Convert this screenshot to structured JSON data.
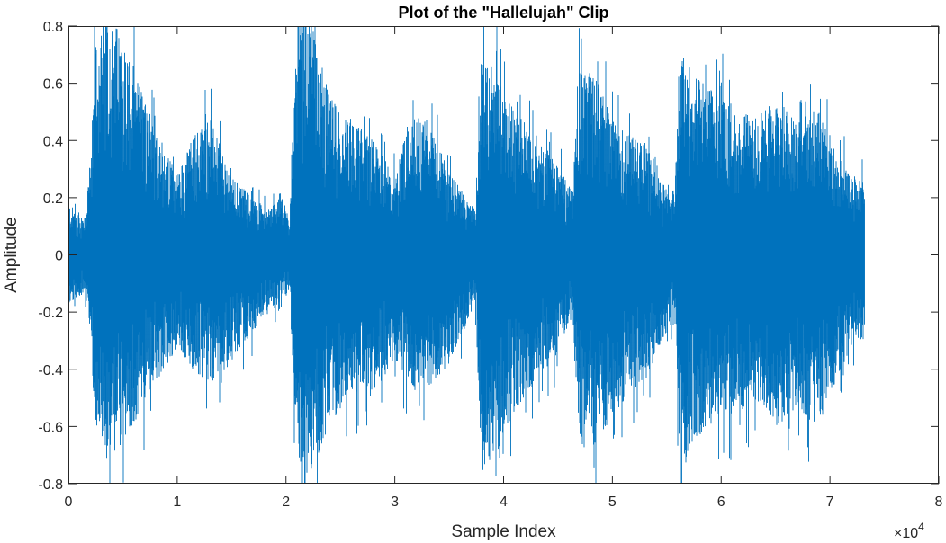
{
  "chart_data": {
    "type": "line",
    "title": "Plot of the \"Hallelujah\" Clip",
    "xlabel": "Sample Index",
    "ylabel": "Amplitude",
    "xlim": [
      0,
      80000
    ],
    "ylim": [
      -0.8,
      0.8
    ],
    "x_tick_values": [
      0,
      10000,
      20000,
      30000,
      40000,
      50000,
      60000,
      70000,
      80000
    ],
    "x_tick_labels": [
      "0",
      "1",
      "2",
      "3",
      "4",
      "5",
      "6",
      "7",
      "8"
    ],
    "x_multiplier": "×10",
    "x_multiplier_exponent": "4",
    "y_tick_values": [
      -0.8,
      -0.6,
      -0.4,
      -0.2,
      0,
      0.2,
      0.4,
      0.6,
      0.8
    ],
    "y_tick_labels": [
      "-0.8",
      "-0.6",
      "-0.4",
      "-0.2",
      "0",
      "0.2",
      "0.4",
      "0.6",
      "0.8"
    ],
    "grid": false,
    "series": [
      {
        "color": "#0072bd",
        "x_range": [
          0,
          73200
        ],
        "envelope": {
          "x": [
            0,
            1500,
            2000,
            2500,
            3500,
            4500,
            6000,
            8000,
            10000,
            11500,
            13000,
            15000,
            17000,
            18500,
            19500,
            20300,
            21000,
            21500,
            22500,
            24000,
            26000,
            28000,
            30000,
            31500,
            33000,
            35000,
            36500,
            37400,
            38000,
            39500,
            41000,
            43000,
            44500,
            46300,
            47000,
            48500,
            50000,
            51500,
            53000,
            54500,
            55700,
            56300,
            57000,
            58500,
            60000,
            61500,
            63000,
            65000,
            67000,
            69000,
            70500,
            72000,
            73200
          ],
          "upper": [
            0.18,
            0.13,
            0.3,
            0.75,
            0.82,
            0.8,
            0.66,
            0.45,
            0.28,
            0.42,
            0.48,
            0.27,
            0.2,
            0.16,
            0.22,
            0.13,
            0.75,
            0.85,
            0.8,
            0.55,
            0.48,
            0.4,
            0.28,
            0.5,
            0.47,
            0.3,
            0.2,
            0.16,
            0.75,
            0.64,
            0.5,
            0.42,
            0.35,
            0.22,
            0.66,
            0.62,
            0.5,
            0.42,
            0.4,
            0.28,
            0.22,
            0.73,
            0.66,
            0.6,
            0.55,
            0.53,
            0.48,
            0.55,
            0.48,
            0.53,
            0.37,
            0.28,
            0.26
          ],
          "lower": [
            -0.18,
            -0.13,
            -0.28,
            -0.62,
            -0.78,
            -0.7,
            -0.6,
            -0.45,
            -0.33,
            -0.42,
            -0.45,
            -0.38,
            -0.27,
            -0.18,
            -0.2,
            -0.13,
            -0.7,
            -0.85,
            -0.75,
            -0.6,
            -0.48,
            -0.5,
            -0.36,
            -0.48,
            -0.48,
            -0.38,
            -0.25,
            -0.17,
            -0.78,
            -0.68,
            -0.55,
            -0.45,
            -0.38,
            -0.22,
            -0.7,
            -0.66,
            -0.58,
            -0.48,
            -0.45,
            -0.3,
            -0.24,
            -0.78,
            -0.7,
            -0.62,
            -0.55,
            -0.56,
            -0.5,
            -0.6,
            -0.55,
            -0.6,
            -0.45,
            -0.32,
            -0.3
          ]
        }
      }
    ]
  }
}
